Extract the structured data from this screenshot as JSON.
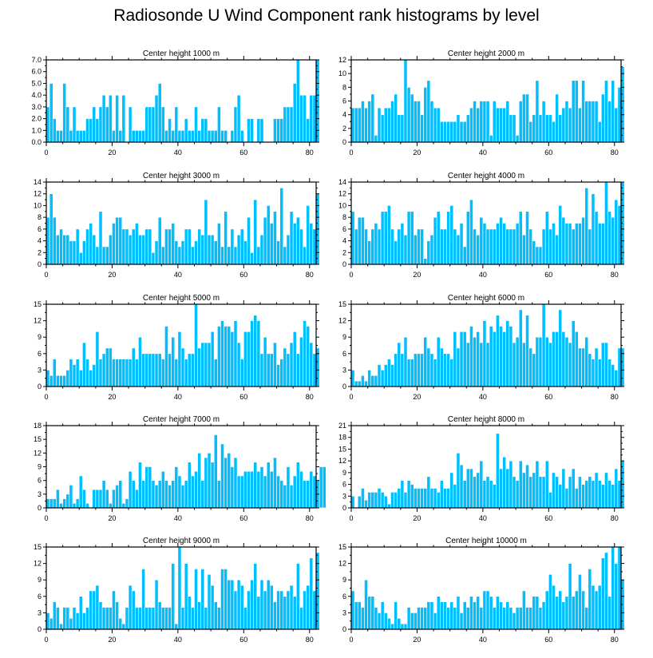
{
  "title": "Radiosonde U Wind Component rank histograms by level",
  "colors": {
    "bar": "#00bfff",
    "bar_edge": "#ffffff",
    "axis": "#000000"
  },
  "chart_data": [
    {
      "type": "bar",
      "title": "Center height 1000 m",
      "xlim": [
        0,
        82
      ],
      "ylim": [
        0,
        7
      ],
      "yticks": [
        0,
        1,
        2,
        3,
        4,
        5,
        6,
        7
      ],
      "ytick_labels": [
        "0.0",
        "1.0",
        "2.0",
        "3.0",
        "4.0",
        "5.0",
        "6.0",
        "7.0"
      ],
      "xticks": [
        0,
        20,
        40,
        60,
        80
      ],
      "values": [
        3,
        5,
        2,
        1,
        1,
        5,
        3,
        1,
        3,
        1,
        1,
        1,
        2,
        2,
        3,
        2,
        3,
        4,
        3,
        4,
        1,
        4,
        1,
        4,
        0,
        3,
        1,
        1,
        1,
        1,
        3,
        3,
        3,
        4,
        5,
        3,
        1,
        2,
        1,
        3,
        1,
        1,
        2,
        1,
        1,
        3,
        1,
        2,
        2,
        1,
        1,
        1,
        3,
        1,
        1,
        0,
        1,
        3,
        4,
        1,
        0,
        2,
        2,
        0,
        2,
        2,
        0,
        0,
        0,
        2,
        2,
        2,
        3,
        3,
        3,
        5,
        7,
        4,
        4,
        2,
        4,
        4,
        7
      ]
    },
    {
      "type": "bar",
      "title": "Center height 2000 m",
      "xlim": [
        0,
        82
      ],
      "ylim": [
        0,
        12
      ],
      "yticks": [
        0,
        2,
        4,
        6,
        8,
        10,
        12
      ],
      "ytick_labels": [
        "0",
        "2",
        "4",
        "6",
        "8",
        "10",
        "12"
      ],
      "xticks": [
        0,
        20,
        40,
        60,
        80
      ],
      "values": [
        5,
        5,
        5,
        6,
        5,
        6,
        7,
        1,
        5,
        4,
        5,
        5,
        6,
        7,
        4,
        4,
        12,
        8,
        7,
        6,
        6,
        4,
        8,
        9,
        6,
        5,
        5,
        3,
        3,
        3,
        3,
        3,
        4,
        3,
        3,
        4,
        5,
        6,
        5,
        6,
        6,
        6,
        1,
        6,
        5,
        5,
        5,
        6,
        4,
        4,
        1,
        6,
        7,
        7,
        3,
        4,
        9,
        4,
        6,
        4,
        4,
        3,
        7,
        4,
        5,
        6,
        5,
        9,
        9,
        5,
        9,
        6,
        6,
        6,
        6,
        3,
        7,
        9,
        6,
        9,
        5,
        8,
        11
      ]
    },
    {
      "type": "bar",
      "title": "Center height 3000 m",
      "xlim": [
        0,
        82
      ],
      "ylim": [
        0,
        14
      ],
      "yticks": [
        0,
        2,
        4,
        6,
        8,
        10,
        12,
        14
      ],
      "ytick_labels": [
        "0",
        "2",
        "4",
        "6",
        "8",
        "10",
        "12",
        "14"
      ],
      "xticks": [
        0,
        20,
        40,
        60,
        80
      ],
      "values": [
        8,
        12,
        8,
        5,
        6,
        5,
        5,
        4,
        4,
        6,
        2,
        4,
        6,
        7,
        5,
        3,
        9,
        3,
        3,
        5,
        7,
        8,
        8,
        6,
        6,
        5,
        6,
        7,
        5,
        5,
        6,
        6,
        2,
        4,
        8,
        3,
        6,
        6,
        7,
        4,
        3,
        4,
        6,
        6,
        3,
        4,
        6,
        5,
        11,
        5,
        5,
        4,
        7,
        3,
        9,
        3,
        6,
        3,
        5,
        6,
        4,
        8,
        2,
        11,
        3,
        5,
        8,
        10,
        7,
        9,
        4,
        13,
        3,
        5,
        9,
        7,
        8,
        6,
        3,
        10,
        7,
        6,
        12
      ]
    },
    {
      "type": "bar",
      "title": "Center height 4000 m",
      "xlim": [
        0,
        82
      ],
      "ylim": [
        0,
        14
      ],
      "yticks": [
        0,
        2,
        4,
        6,
        8,
        10,
        12,
        14
      ],
      "ytick_labels": [
        "0",
        "2",
        "4",
        "6",
        "8",
        "10",
        "12",
        "14"
      ],
      "xticks": [
        0,
        20,
        40,
        60,
        80
      ],
      "values": [
        9,
        6,
        8,
        8,
        6,
        4,
        6,
        7,
        6,
        9,
        9,
        10,
        6,
        4,
        6,
        7,
        5,
        9,
        9,
        5,
        6,
        6,
        1,
        4,
        5,
        8,
        9,
        6,
        6,
        9,
        10,
        6,
        5,
        7,
        3,
        9,
        11,
        6,
        5,
        8,
        7,
        6,
        6,
        6,
        7,
        8,
        7,
        6,
        6,
        6,
        7,
        9,
        5,
        9,
        6,
        4,
        3,
        3,
        6,
        9,
        6,
        7,
        5,
        10,
        8,
        7,
        7,
        6,
        7,
        7,
        8,
        13,
        6,
        12,
        9,
        7,
        7,
        14,
        9,
        8,
        11,
        10,
        14
      ]
    },
    {
      "type": "bar",
      "title": "Center height 5000 m",
      "xlim": [
        0,
        82
      ],
      "ylim": [
        0,
        15
      ],
      "yticks": [
        0,
        3,
        6,
        9,
        12,
        15
      ],
      "ytick_labels": [
        "0",
        "3",
        "6",
        "9",
        "12",
        "15"
      ],
      "xticks": [
        0,
        20,
        40,
        60,
        80
      ],
      "values": [
        3,
        2,
        5,
        2,
        2,
        2,
        3,
        5,
        4,
        5,
        3,
        8,
        5,
        3,
        4,
        10,
        5,
        6,
        7,
        7,
        5,
        5,
        5,
        5,
        5,
        5,
        7,
        5,
        9,
        6,
        6,
        6,
        6,
        6,
        6,
        5,
        11,
        6,
        9,
        5,
        10,
        7,
        5,
        6,
        6,
        15,
        7,
        8,
        8,
        8,
        10,
        5,
        11,
        12,
        11,
        11,
        10,
        12,
        8,
        5,
        10,
        10,
        12,
        13,
        12,
        6,
        9,
        6,
        6,
        8,
        4,
        5,
        7,
        6,
        8,
        10,
        6,
        9,
        12,
        11,
        8,
        6,
        7
      ]
    },
    {
      "type": "bar",
      "title": "Center height 6000 m",
      "xlim": [
        0,
        82
      ],
      "ylim": [
        0,
        15
      ],
      "yticks": [
        0,
        3,
        6,
        9,
        12,
        15
      ],
      "ytick_labels": [
        "0",
        "3",
        "6",
        "9",
        "12",
        "15"
      ],
      "xticks": [
        0,
        20,
        40,
        60,
        80
      ],
      "values": [
        3,
        1,
        1,
        2,
        1,
        3,
        2,
        2,
        4,
        3,
        4,
        5,
        4,
        6,
        8,
        6,
        9,
        5,
        5,
        6,
        6,
        6,
        9,
        7,
        6,
        5,
        9,
        7,
        6,
        6,
        5,
        10,
        7,
        10,
        10,
        8,
        11,
        9,
        10,
        8,
        12,
        8,
        11,
        10,
        13,
        11,
        10,
        12,
        11,
        8,
        9,
        14,
        8,
        13,
        7,
        6,
        9,
        9,
        15,
        9,
        8,
        10,
        10,
        14,
        10,
        9,
        8,
        12,
        10,
        7,
        7,
        9,
        6,
        5,
        7,
        5,
        8,
        8,
        5,
        4,
        3,
        7,
        7
      ]
    },
    {
      "type": "bar",
      "title": "Center height 7000 m",
      "xlim": [
        0,
        82
      ],
      "ylim": [
        0,
        18
      ],
      "yticks": [
        0,
        3,
        6,
        9,
        12,
        15,
        18
      ],
      "ytick_labels": [
        "0",
        "3",
        "6",
        "9",
        "12",
        "15",
        "18"
      ],
      "xticks": [
        0,
        20,
        40,
        60,
        80
      ],
      "values": [
        2,
        2,
        2,
        4,
        1,
        2,
        3,
        5,
        1,
        2,
        7,
        4,
        1,
        0,
        4,
        4,
        4,
        6,
        4,
        1,
        4,
        5,
        6,
        1,
        2,
        8,
        6,
        4,
        10,
        6,
        9,
        9,
        6,
        5,
        6,
        8,
        6,
        5,
        6,
        9,
        7,
        5,
        6,
        10,
        7,
        8,
        12,
        6,
        11,
        12,
        10,
        16,
        6,
        14,
        11,
        12,
        9,
        11,
        7,
        7,
        8,
        8,
        8,
        10,
        8,
        9,
        7,
        10,
        8,
        11,
        7,
        6,
        5,
        9,
        5,
        7,
        10,
        8,
        6,
        6,
        8,
        7,
        6,
        9,
        9
      ]
    },
    {
      "type": "bar",
      "title": "Center height 8000 m",
      "xlim": [
        0,
        82
      ],
      "ylim": [
        0,
        21
      ],
      "yticks": [
        0,
        3,
        6,
        9,
        12,
        15,
        18,
        21
      ],
      "ytick_labels": [
        "0",
        "3",
        "6",
        "9",
        "12",
        "15",
        "18",
        "21"
      ],
      "xticks": [
        0,
        20,
        40,
        60,
        80
      ],
      "values": [
        3,
        0,
        3,
        5,
        2,
        4,
        4,
        4,
        5,
        4,
        3,
        1,
        4,
        4,
        5,
        7,
        4,
        7,
        6,
        5,
        5,
        5,
        5,
        8,
        5,
        5,
        4,
        7,
        5,
        5,
        9,
        6,
        14,
        11,
        7,
        10,
        10,
        8,
        9,
        12,
        7,
        8,
        7,
        6,
        19,
        10,
        13,
        10,
        12,
        8,
        7,
        12,
        9,
        11,
        8,
        9,
        12,
        8,
        8,
        12,
        4,
        9,
        8,
        6,
        10,
        5,
        8,
        10,
        5,
        8,
        6,
        7,
        8,
        7,
        9,
        7,
        6,
        9,
        7,
        6,
        10,
        7,
        12
      ]
    },
    {
      "type": "bar",
      "title": "Center height 9000 m",
      "xlim": [
        0,
        82
      ],
      "ylim": [
        0,
        15
      ],
      "yticks": [
        0,
        3,
        6,
        9,
        12,
        15
      ],
      "ytick_labels": [
        "0",
        "3",
        "6",
        "9",
        "12",
        "15"
      ],
      "xticks": [
        0,
        20,
        40,
        60,
        80
      ],
      "values": [
        3,
        2,
        5,
        4,
        1,
        4,
        4,
        2,
        4,
        3,
        6,
        3,
        4,
        7,
        7,
        8,
        5,
        4,
        4,
        4,
        7,
        5,
        2,
        1,
        4,
        8,
        7,
        4,
        4,
        11,
        4,
        4,
        4,
        9,
        5,
        4,
        4,
        4,
        12,
        1,
        15,
        4,
        12,
        6,
        4,
        11,
        5,
        11,
        4,
        10,
        8,
        5,
        4,
        11,
        11,
        9,
        9,
        7,
        9,
        8,
        4,
        7,
        9,
        12,
        6,
        9,
        7,
        9,
        8,
        5,
        7,
        7,
        6,
        7,
        8,
        6,
        12,
        4,
        7,
        8,
        13,
        7,
        14
      ]
    },
    {
      "type": "bar",
      "title": "Center height 10000 m",
      "xlim": [
        0,
        82
      ],
      "ylim": [
        0,
        15
      ],
      "yticks": [
        0,
        3,
        6,
        9,
        12,
        15
      ],
      "ytick_labels": [
        "0",
        "3",
        "6",
        "9",
        "12",
        "15"
      ],
      "xticks": [
        0,
        20,
        40,
        60,
        80
      ],
      "values": [
        7,
        5,
        5,
        4,
        9,
        6,
        6,
        4,
        3,
        5,
        3,
        2,
        1,
        5,
        2,
        1,
        1,
        4,
        3,
        3,
        4,
        4,
        4,
        5,
        5,
        3,
        6,
        5,
        5,
        4,
        5,
        4,
        6,
        3,
        5,
        4,
        6,
        5,
        6,
        4,
        7,
        7,
        6,
        4,
        6,
        5,
        4,
        5,
        4,
        3,
        4,
        4,
        7,
        4,
        4,
        6,
        6,
        4,
        5,
        7,
        10,
        8,
        6,
        7,
        5,
        6,
        12,
        6,
        7,
        10,
        7,
        4,
        11,
        8,
        7,
        8,
        13,
        14,
        6,
        15,
        12,
        15,
        9
      ]
    }
  ]
}
